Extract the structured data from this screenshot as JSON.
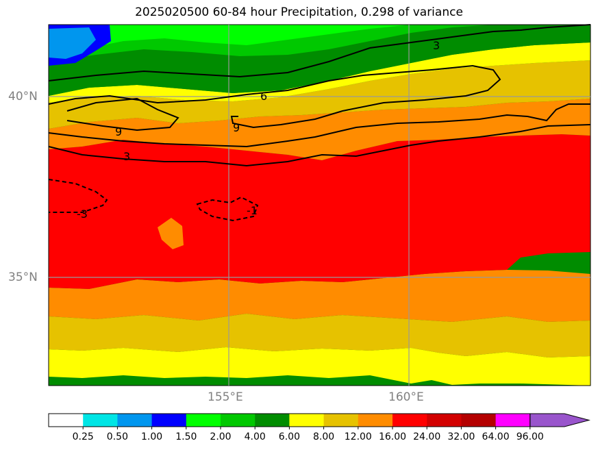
{
  "title": "2025020500 60-84 hour Precipitation, 0.298 of variance",
  "axes": {
    "lat_labels": [
      "40°N",
      "35°N"
    ],
    "lon_labels": [
      "155°E",
      "160°E"
    ]
  },
  "contour_labels": [
    "3",
    "6",
    "9",
    "3",
    "9",
    "-3",
    "-1",
    "3"
  ],
  "colorbar": {
    "ticks": [
      "0.25",
      "0.50",
      "1.00",
      "1.50",
      "2.00",
      "4.00",
      "6.00",
      "8.00",
      "12.00",
      "16.00",
      "24.00",
      "32.00",
      "64.00",
      "96.00"
    ],
    "colors": [
      "#ffffff",
      "#00e5e5",
      "#0096ee",
      "#0000ff",
      "#00ff00",
      "#00c800",
      "#008c00",
      "#ffff00",
      "#e6c200",
      "#ff8c00",
      "#ff0000",
      "#d20000",
      "#b40000",
      "#ff00ff",
      "#9955cc"
    ]
  }
}
